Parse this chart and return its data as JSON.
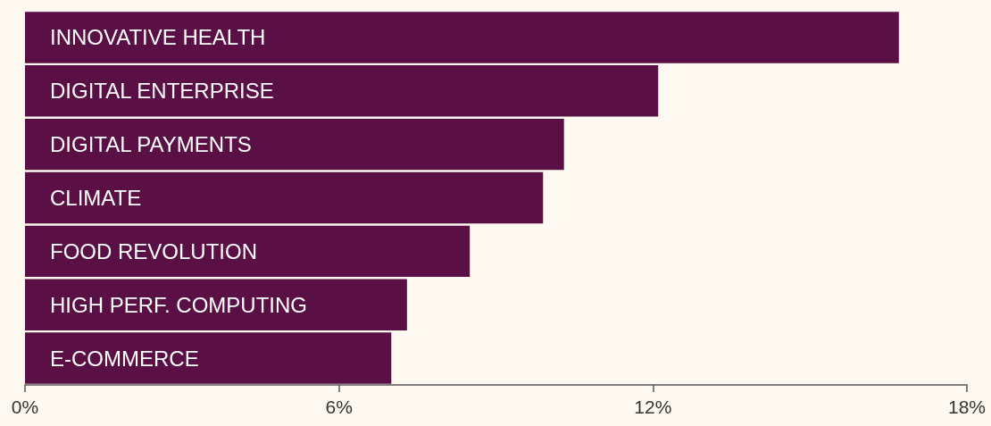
{
  "chart_data": {
    "type": "bar",
    "orientation": "horizontal",
    "categories": [
      "INNOVATIVE HEALTH",
      "DIGITAL ENTERPRISE",
      "DIGITAL PAYMENTS",
      "CLIMATE",
      "FOOD REVOLUTION",
      "HIGH PERF. COMPUTING",
      "E-COMMERCE"
    ],
    "values": [
      16.7,
      12.1,
      10.3,
      9.9,
      8.5,
      7.3,
      7.0
    ],
    "color": "#5a0f45",
    "xlim": [
      0,
      18
    ],
    "xticks": [
      {
        "value": 0,
        "label": "0%"
      },
      {
        "value": 6,
        "label": "6%"
      },
      {
        "value": 12,
        "label": "12%"
      },
      {
        "value": 18,
        "label": "18%"
      }
    ],
    "grid": false
  }
}
